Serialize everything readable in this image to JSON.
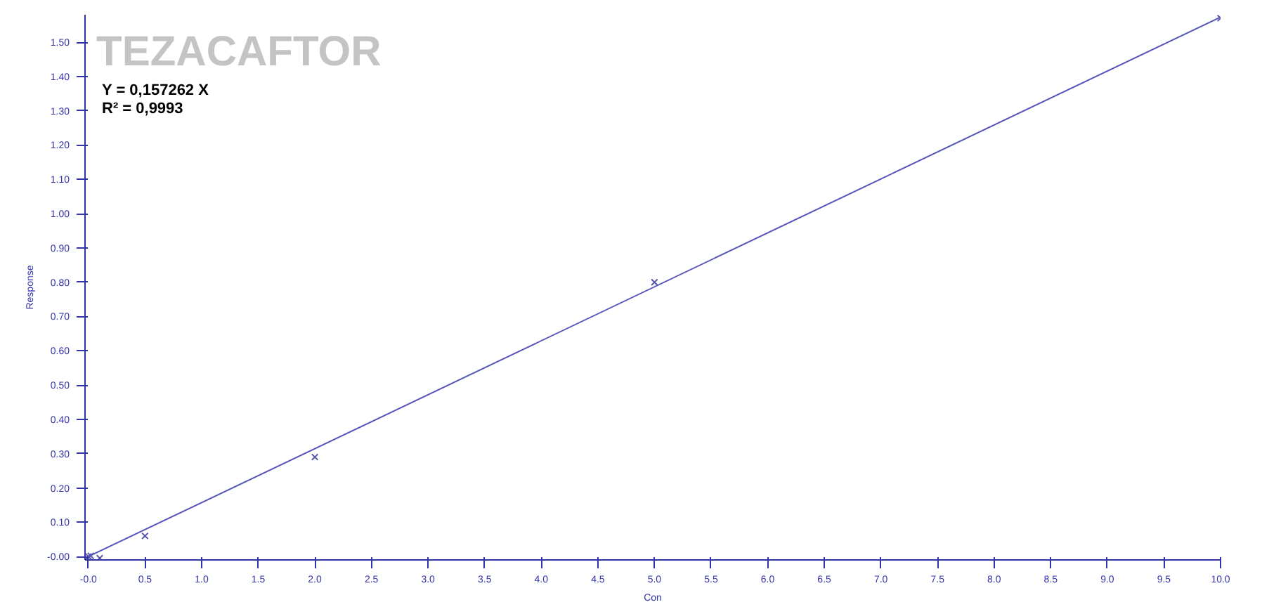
{
  "chart_data": {
    "type": "scatter",
    "title": "TEZACAFTOR",
    "xlabel": "Con",
    "ylabel": "Response",
    "annotations": [
      "Y = 0,157262 X",
      "R² = 0,9993"
    ],
    "marker": "cross",
    "grid": false,
    "xlim": [
      -0.03,
      10.0
    ],
    "ylim": [
      -0.01,
      1.58
    ],
    "xticks": [
      {
        "value": 0,
        "label": "-0.0"
      },
      0.5,
      {
        "value": 1,
        "label": "1.0"
      },
      1.5,
      {
        "value": 2,
        "label": "2.0"
      },
      2.5,
      {
        "value": 3,
        "label": "3.0"
      },
      3.5,
      {
        "value": 4,
        "label": "4.0"
      },
      4.5,
      {
        "value": 5,
        "label": "5.0"
      },
      5.5,
      {
        "value": 6,
        "label": "6.0"
      },
      6.5,
      {
        "value": 7,
        "label": "7.0"
      },
      7.5,
      {
        "value": 8,
        "label": "8.0"
      },
      8.5,
      {
        "value": 9,
        "label": "9.0"
      },
      9.5,
      {
        "value": 10,
        "label": "10.0"
      }
    ],
    "yticks": [
      {
        "value": 0,
        "label": "-0.00"
      },
      {
        "value": 0.1,
        "label": "0.10"
      },
      {
        "value": 0.2,
        "label": "0.20"
      },
      {
        "value": 0.3,
        "label": "0.30"
      },
      {
        "value": 0.4,
        "label": "0.40"
      },
      {
        "value": 0.5,
        "label": "0.50"
      },
      {
        "value": 0.6,
        "label": "0.60"
      },
      {
        "value": 0.7,
        "label": "0.70"
      },
      {
        "value": 0.8,
        "label": "0.80"
      },
      {
        "value": 0.9,
        "label": "0.90"
      },
      {
        "value": 1.0,
        "label": "1.00"
      },
      {
        "value": 1.1,
        "label": "1.10"
      },
      {
        "value": 1.2,
        "label": "1.20"
      },
      {
        "value": 1.3,
        "label": "1.30"
      },
      {
        "value": 1.4,
        "label": "1.40"
      },
      {
        "value": 1.5,
        "label": "1.50"
      }
    ],
    "series": [
      {
        "type": "scatter",
        "color": "#5555aa",
        "x": [
          0.0,
          0.02,
          0.1,
          0.5,
          2.0,
          5.0,
          10.0
        ],
        "values": [
          0.0,
          0.002,
          -0.005,
          0.06,
          0.29,
          0.8,
          1.57
        ]
      },
      {
        "type": "line",
        "color": "#5555bb",
        "marker": "none",
        "x": [
          0.0,
          10.0
        ],
        "values": [
          0.0,
          1.573
        ]
      }
    ]
  }
}
